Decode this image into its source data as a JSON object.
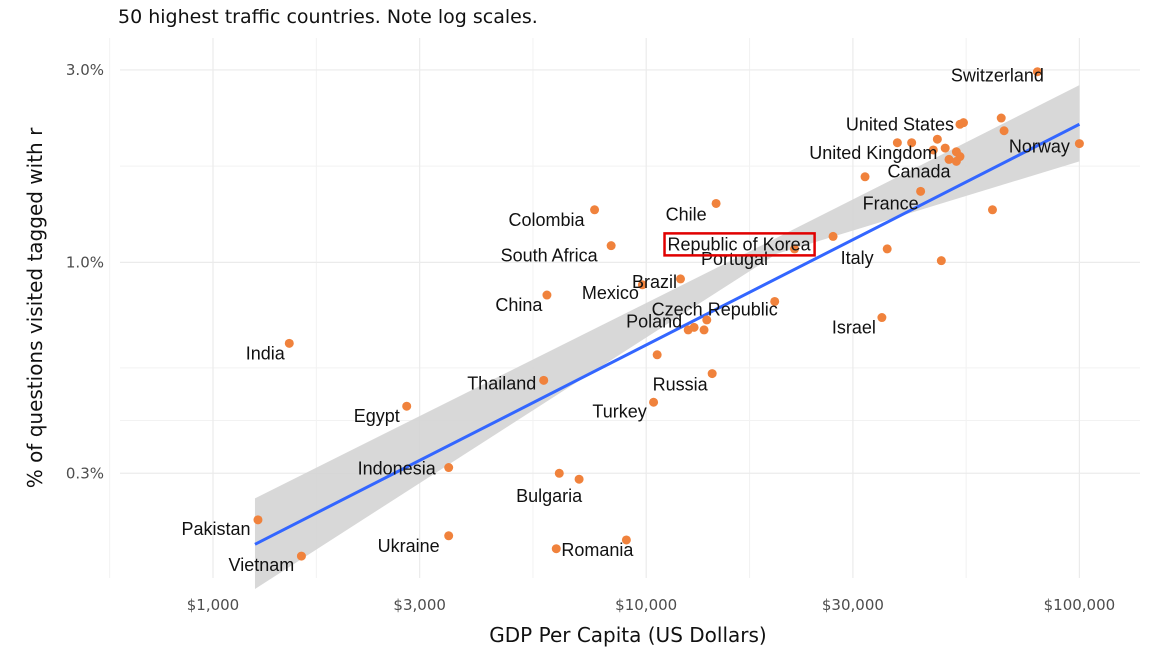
{
  "chart_data": {
    "type": "scatter",
    "subtitle": "50 highest traffic countries. Note log scales.",
    "xlabel": "GDP Per Capita (US Dollars)",
    "ylabel": "% of questions visited tagged with r",
    "x_scale": "log",
    "y_scale": "log",
    "xlim": [
      610,
      138000
    ],
    "ylim": [
      0.165,
      3.6
    ],
    "x_ticks": [
      {
        "value": 1000,
        "label": "$1,000"
      },
      {
        "value": 3000,
        "label": "$3,000"
      },
      {
        "value": 10000,
        "label": "$10,000"
      },
      {
        "value": 30000,
        "label": "$30,000"
      },
      {
        "value": 100000,
        "label": "$100,000"
      }
    ],
    "y_ticks": [
      {
        "value": 0.3,
        "label": "0.3%"
      },
      {
        "value": 1.0,
        "label": "1.0%"
      },
      {
        "value": 3.0,
        "label": "3.0%"
      }
    ],
    "grid": true,
    "point_color": "#f0823c",
    "trend_color": "#3366ff",
    "band_color": "#d4d4d4",
    "trend": {
      "x": [
        1250,
        100000
      ],
      "y": [
        0.2,
        2.2
      ]
    },
    "band": {
      "x": [
        1250,
        20000,
        100000
      ],
      "upper": [
        0.26,
        1.15,
        2.75
      ],
      "lower": [
        0.155,
        1.05,
        1.78
      ]
    },
    "highlight": "Republic of Korea",
    "points": [
      {
        "label": "Switzerland",
        "x": 80000,
        "y": 2.97
      },
      {
        "label": "United States",
        "x": 53000,
        "y": 2.2
      },
      {
        "label": "United Kingdom",
        "x": 46000,
        "y": 1.9
      },
      {
        "label": "Norway",
        "x": 100000,
        "y": 1.97
      },
      {
        "label": "Canada",
        "x": 50000,
        "y": 1.8
      },
      {
        "label": "France",
        "x": 43000,
        "y": 1.5
      },
      {
        "label": "Chile",
        "x": 14500,
        "y": 1.4
      },
      {
        "label": "Republic of Korea",
        "x": 27000,
        "y": 1.16
      },
      {
        "label": "Portugal",
        "x": 22000,
        "y": 1.08
      },
      {
        "label": "Italy",
        "x": 36000,
        "y": 1.08
      },
      {
        "label": "Colombia",
        "x": 7600,
        "y": 1.35
      },
      {
        "label": "South Africa",
        "x": 8300,
        "y": 1.1
      },
      {
        "label": "Mexico",
        "x": 9800,
        "y": 0.88
      },
      {
        "label": "Brazil",
        "x": 12000,
        "y": 0.91
      },
      {
        "label": "China",
        "x": 5900,
        "y": 0.83
      },
      {
        "label": "Czech Republic",
        "x": 19800,
        "y": 0.8
      },
      {
        "label": "Israel",
        "x": 35000,
        "y": 0.73
      },
      {
        "label": "Poland",
        "x": 12900,
        "y": 0.69
      },
      {
        "label": "Russia",
        "x": 14200,
        "y": 0.53
      },
      {
        "label": "Turkey",
        "x": 10400,
        "y": 0.45
      },
      {
        "label": "Thailand",
        "x": 5800,
        "y": 0.51
      },
      {
        "label": "India",
        "x": 1500,
        "y": 0.63
      },
      {
        "label": "Egypt",
        "x": 2800,
        "y": 0.44
      },
      {
        "label": "Indonesia",
        "x": 3500,
        "y": 0.31
      },
      {
        "label": "Bulgaria",
        "x": 7000,
        "y": 0.29
      },
      {
        "label": "Pakistan",
        "x": 1270,
        "y": 0.23
      },
      {
        "label": "Ukraine",
        "x": 3500,
        "y": 0.21
      },
      {
        "label": "Romania",
        "x": 9000,
        "y": 0.205
      },
      {
        "label": "Vietnam",
        "x": 1600,
        "y": 0.187
      },
      {
        "label": "",
        "x": 6300,
        "y": 0.3
      },
      {
        "label": "",
        "x": 6200,
        "y": 0.195
      },
      {
        "label": "",
        "x": 10600,
        "y": 0.59
      },
      {
        "label": "",
        "x": 13800,
        "y": 0.72
      },
      {
        "label": "",
        "x": 13600,
        "y": 0.68
      },
      {
        "label": "",
        "x": 12500,
        "y": 0.68
      },
      {
        "label": "",
        "x": 32000,
        "y": 1.63
      },
      {
        "label": "",
        "x": 38000,
        "y": 1.98
      },
      {
        "label": "",
        "x": 41000,
        "y": 1.98
      },
      {
        "label": "",
        "x": 47000,
        "y": 2.02
      },
      {
        "label": "",
        "x": 49000,
        "y": 1.92
      },
      {
        "label": "",
        "x": 52000,
        "y": 1.88
      },
      {
        "label": "",
        "x": 52000,
        "y": 1.78
      },
      {
        "label": "",
        "x": 54000,
        "y": 2.22
      },
      {
        "label": "",
        "x": 66000,
        "y": 2.28
      },
      {
        "label": "",
        "x": 67000,
        "y": 2.12
      },
      {
        "label": "",
        "x": 63000,
        "y": 1.35
      },
      {
        "label": "",
        "x": 48000,
        "y": 1.01
      },
      {
        "label": "",
        "x": 53000,
        "y": 1.83
      }
    ]
  }
}
